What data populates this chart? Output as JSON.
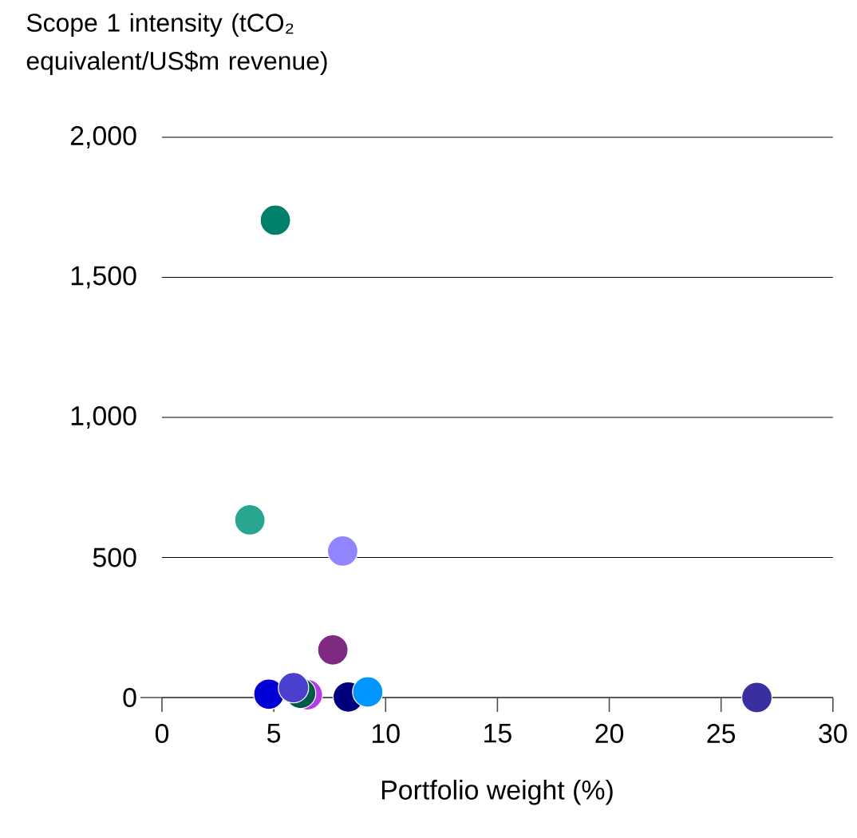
{
  "chart_data": {
    "type": "scatter",
    "ylabel": "Scope 1 intensity (tCO₂ equivalent/US$m revenue)",
    "xlabel": "Portfolio weight (%)",
    "x": [
      5.07,
      3.93,
      8.08,
      7.64,
      4.78,
      6.5,
      6.2,
      5.88,
      8.33,
      9.2,
      26.6
    ],
    "values": [
      1704,
      634,
      523,
      170,
      12,
      10,
      15,
      35,
      2,
      20,
      0
    ],
    "colors": [
      "#007f6a",
      "#2aa590",
      "#9186ff",
      "#7f2a82",
      "#0000d4",
      "#b43ce8",
      "#005a4a",
      "#4b3fce",
      "#00007f",
      "#0095ff",
      "#3a2fa0"
    ],
    "xlim": [
      0,
      30
    ],
    "xticks": [
      0,
      5,
      10,
      15,
      20,
      25,
      30
    ],
    "ylim": [
      0,
      2000
    ],
    "yticks": [
      0,
      500,
      {
        "value": 1000,
        "label": "1,000"
      },
      {
        "value": 1500,
        "label": "1,500"
      },
      {
        "value": 2000,
        "label": "2,000"
      }
    ],
    "grid": "y",
    "marker": "circle"
  }
}
